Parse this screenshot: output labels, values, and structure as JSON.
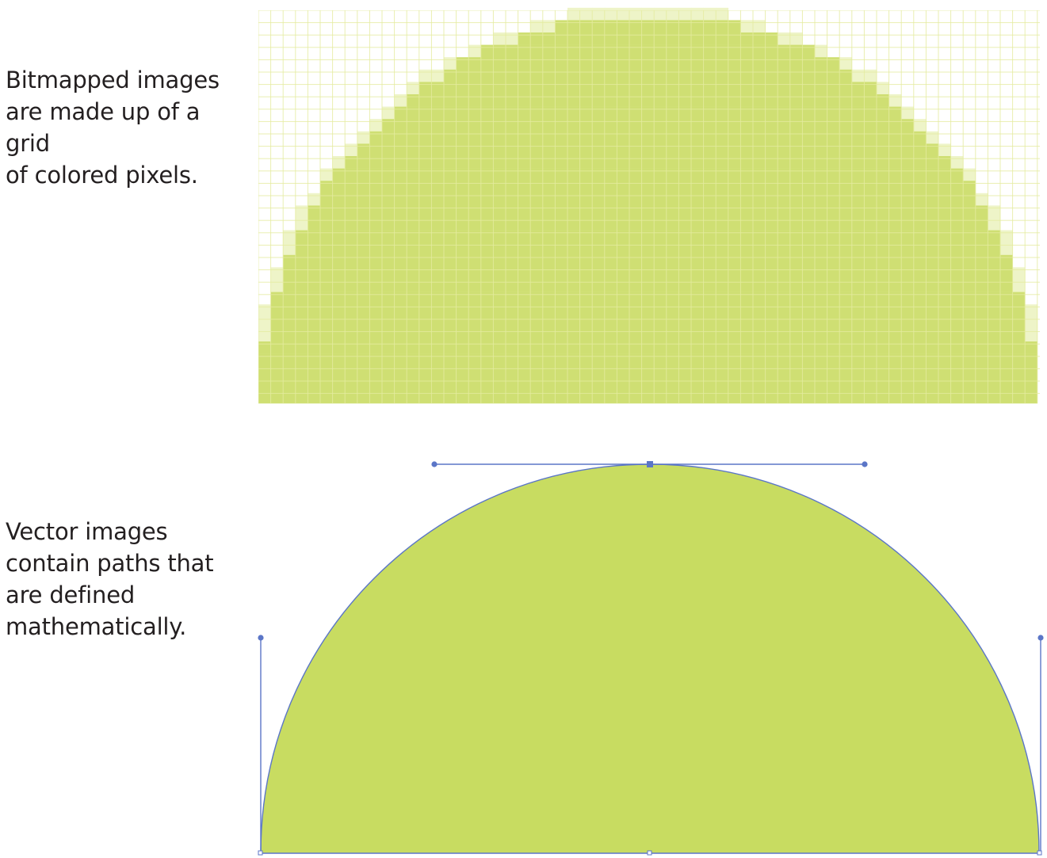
{
  "bitmap": {
    "caption": "Bitmapped images\nare made up of a grid\nof colored pixels.",
    "fill_color": "#cfdf73",
    "edge_color": "#eef4c8",
    "grid_line_color": "#e4ec9f"
  },
  "vector": {
    "caption": "Vector images\ncontain paths that\nare defined\nmathematically.",
    "fill_color": "#c8dc61",
    "path_color": "#5b76c7",
    "anchor_icon": "square-anchor-point",
    "handle_icon": "round-handle-point"
  }
}
